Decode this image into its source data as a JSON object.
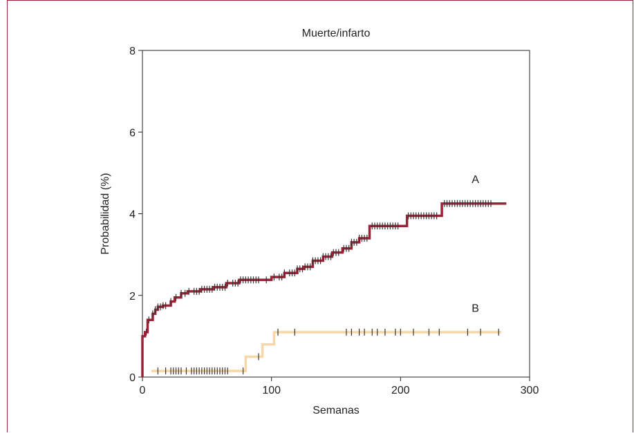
{
  "chart_data": {
    "type": "line",
    "title": "Muerte/infarto",
    "xlabel": "Semanas",
    "ylabel": "Probabilidad (%)",
    "xlim": [
      0,
      300
    ],
    "ylim": [
      0,
      8
    ],
    "xticks": [
      0,
      100,
      200,
      300
    ],
    "yticks": [
      0,
      2,
      4,
      6,
      8
    ],
    "grid": false,
    "step": true,
    "series": [
      {
        "name": "A",
        "color": "#9b2335",
        "censor_color": "#333333",
        "points": [
          [
            0,
            0
          ],
          [
            0,
            1.0
          ],
          [
            2,
            1.1
          ],
          [
            4,
            1.4
          ],
          [
            8,
            1.55
          ],
          [
            10,
            1.65
          ],
          [
            12,
            1.72
          ],
          [
            16,
            1.75
          ],
          [
            22,
            1.85
          ],
          [
            25,
            1.95
          ],
          [
            30,
            2.05
          ],
          [
            35,
            2.1
          ],
          [
            45,
            2.15
          ],
          [
            55,
            2.2
          ],
          [
            65,
            2.3
          ],
          [
            75,
            2.38
          ],
          [
            100,
            2.45
          ],
          [
            110,
            2.55
          ],
          [
            120,
            2.65
          ],
          [
            125,
            2.7
          ],
          [
            132,
            2.85
          ],
          [
            140,
            2.95
          ],
          [
            147,
            3.05
          ],
          [
            155,
            3.15
          ],
          [
            162,
            3.3
          ],
          [
            168,
            3.4
          ],
          [
            176,
            3.7
          ],
          [
            205,
            3.95
          ],
          [
            232,
            4.25
          ],
          [
            282,
            4.25
          ]
        ],
        "censor_x": [
          3,
          5,
          8,
          10,
          12,
          14,
          16,
          18,
          22,
          26,
          30,
          33,
          36,
          40,
          42,
          44,
          46,
          48,
          50,
          52,
          54,
          56,
          58,
          60,
          62,
          64,
          66,
          70,
          72,
          74,
          76,
          78,
          80,
          82,
          84,
          86,
          88,
          90,
          96,
          102,
          106,
          108,
          110,
          114,
          116,
          118,
          120,
          122,
          124,
          126,
          128,
          130,
          132,
          134,
          136,
          138,
          140,
          142,
          144,
          146,
          148,
          150,
          152,
          156,
          158,
          160,
          162,
          164,
          166,
          168,
          170,
          172,
          174,
          178,
          180,
          182,
          184,
          186,
          188,
          190,
          192,
          194,
          196,
          198,
          206,
          208,
          210,
          212,
          214,
          216,
          218,
          220,
          222,
          224,
          226,
          228,
          234,
          236,
          238,
          240,
          242,
          244,
          246,
          248,
          250,
          252,
          254,
          256,
          258,
          260,
          262,
          264,
          266,
          268,
          270
        ]
      },
      {
        "name": "B",
        "color": "#f5d7a8",
        "censor_color": "#333333",
        "points": [
          [
            7,
            0.15
          ],
          [
            80,
            0.15
          ],
          [
            80,
            0.5
          ],
          [
            93,
            0.8
          ],
          [
            102,
            1.1
          ],
          [
            278,
            1.1
          ]
        ],
        "censor_x": [
          12,
          18,
          22,
          24,
          26,
          28,
          30,
          34,
          38,
          40,
          42,
          44,
          46,
          48,
          50,
          52,
          54,
          56,
          58,
          60,
          62,
          64,
          66,
          78,
          90,
          105,
          118,
          158,
          162,
          168,
          172,
          178,
          182,
          188,
          196,
          200,
          210,
          222,
          230,
          252,
          262,
          276
        ]
      }
    ],
    "annotations": [
      {
        "text": "A",
        "x": 258,
        "y": 4.75
      },
      {
        "text": "B",
        "x": 258,
        "y": 1.6
      }
    ]
  }
}
